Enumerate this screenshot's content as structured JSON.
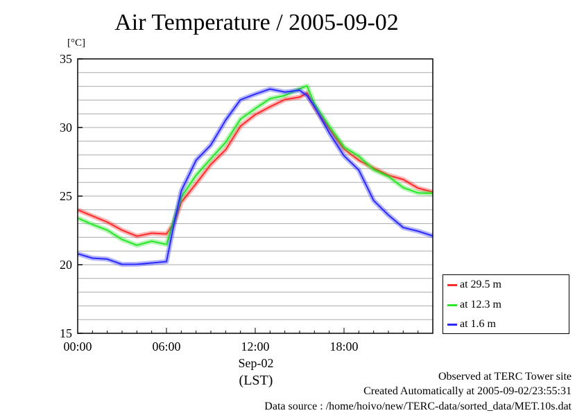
{
  "chart_data": {
    "type": "line",
    "title": "Air Temperature / 2005-09-02",
    "y_unit": "[°C]",
    "ylim": [
      15,
      35
    ],
    "y_ticks": [
      15,
      20,
      25,
      30,
      35
    ],
    "x_ticks": [
      "00:00",
      "06:00",
      "12:00",
      "18:00"
    ],
    "x_date_label": "Sep-02",
    "x_tz_label": "(LST)",
    "x_hours": [
      0,
      1,
      2,
      3,
      4,
      5,
      6,
      6.5,
      7,
      8,
      9,
      10,
      11,
      12,
      13,
      14,
      15,
      15.5,
      16,
      17,
      18,
      19,
      20,
      21,
      22,
      23,
      24
    ],
    "series": [
      {
        "name": "at 29.5 m",
        "color": "#ff2a2a",
        "values": [
          24.0,
          23.5,
          23.2,
          22.4,
          22.2,
          22.2,
          22.3,
          23.0,
          24.5,
          26.0,
          27.2,
          28.5,
          30.0,
          31.0,
          31.5,
          32.0,
          32.3,
          32.4,
          31.6,
          29.8,
          28.5,
          27.6,
          27.0,
          26.6,
          26.1,
          25.7,
          25.3
        ]
      },
      {
        "name": "at 12.3 m",
        "color": "#2ae62a",
        "values": [
          23.4,
          23.0,
          22.5,
          21.8,
          21.5,
          21.6,
          21.6,
          23.1,
          25.0,
          26.5,
          27.7,
          29.0,
          30.5,
          31.5,
          32.0,
          32.4,
          32.8,
          33.0,
          31.8,
          30.0,
          28.7,
          27.8,
          27.0,
          26.4,
          25.6,
          25.3,
          25.2
        ]
      },
      {
        "name": "at 1.6 m",
        "color": "#2a2aff",
        "values": [
          20.8,
          20.6,
          20.3,
          20.1,
          20.0,
          20.1,
          20.3,
          22.8,
          25.5,
          27.5,
          28.8,
          30.5,
          32.0,
          32.5,
          32.7,
          32.7,
          32.6,
          32.4,
          31.5,
          29.6,
          28.0,
          26.8,
          24.8,
          23.5,
          22.8,
          22.4,
          22.1
        ]
      }
    ],
    "grid": true,
    "legend_position": "bottom-right, outside plot"
  },
  "footer": {
    "line1": "Observed at TERC Tower site",
    "line2": "Created Automatically at 2005-09-02/23:55:31",
    "line3": "Data source : /home/hoivo/new/TERC-data/sorted_data/MET.10s.dat"
  }
}
